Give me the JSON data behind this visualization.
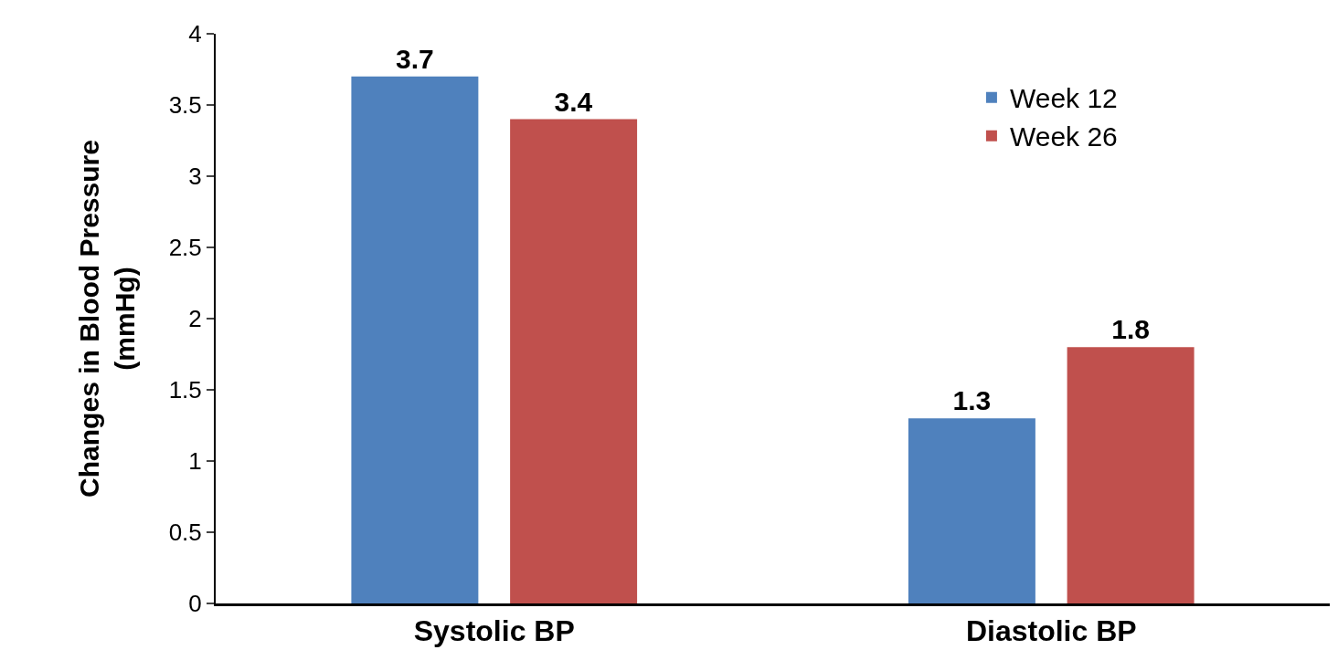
{
  "chart_data": {
    "type": "bar",
    "ylabel": "Changes in Blood Pressure\n(mmHg)",
    "categories": [
      "Systolic BP",
      "Diastolic BP"
    ],
    "series": [
      {
        "name": "Week 12",
        "color": "#4f81bd",
        "values": [
          3.7,
          1.3
        ]
      },
      {
        "name": "Week 26",
        "color": "#c0504d",
        "values": [
          3.4,
          1.8
        ]
      }
    ],
    "ylim": [
      0,
      4
    ],
    "yticks": [
      0,
      {
        "value": 0.5,
        "label": "0.5"
      },
      1,
      {
        "value": 1.5,
        "label": "1.5"
      },
      2,
      {
        "value": 2.5,
        "label": "2.5"
      },
      3,
      {
        "value": 3.5,
        "label": "3.5"
      },
      4
    ],
    "data_labels": true,
    "legend": "top right"
  }
}
